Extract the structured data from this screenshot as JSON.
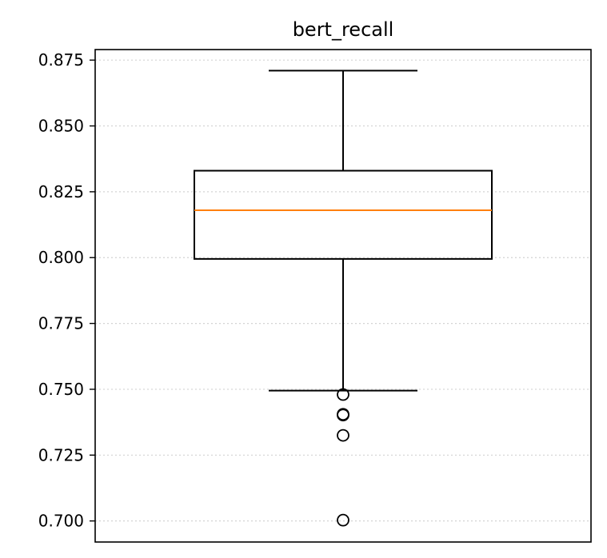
{
  "chart_data": {
    "type": "boxplot",
    "title": "bert_recall",
    "xlabel": "",
    "ylabel": "",
    "ylim": [
      0.692,
      0.879
    ],
    "yticks": [
      "0.700",
      "0.725",
      "0.750",
      "0.775",
      "0.800",
      "0.825",
      "0.850",
      "0.875"
    ],
    "grid": "y-dotted",
    "box": {
      "whisker_low": 0.7495,
      "q1": 0.7995,
      "median": 0.818,
      "q3": 0.833,
      "whisker_high": 0.871
    },
    "outliers": [
      0.748,
      0.7405,
      0.7402,
      0.7325,
      0.7003
    ],
    "colors": {
      "box": "#000000",
      "median": "#ff7f0e",
      "grid": "#d3d3d3"
    }
  }
}
